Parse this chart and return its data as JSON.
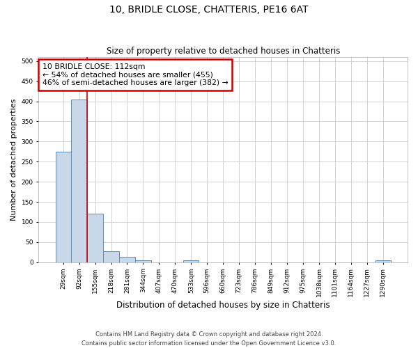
{
  "title1": "10, BRIDLE CLOSE, CHATTERIS, PE16 6AT",
  "title2": "Size of property relative to detached houses in Chatteris",
  "xlabel": "Distribution of detached houses by size in Chatteris",
  "ylabel": "Number of detached properties",
  "footer1": "Contains HM Land Registry data © Crown copyright and database right 2024.",
  "footer2": "Contains public sector information licensed under the Open Government Licence v3.0.",
  "bar_labels": [
    "29sqm",
    "92sqm",
    "155sqm",
    "218sqm",
    "281sqm",
    "344sqm",
    "407sqm",
    "470sqm",
    "533sqm",
    "596sqm",
    "660sqm",
    "723sqm",
    "786sqm",
    "849sqm",
    "912sqm",
    "975sqm",
    "1038sqm",
    "1101sqm",
    "1164sqm",
    "1227sqm",
    "1290sqm"
  ],
  "bar_values": [
    275,
    405,
    120,
    27,
    13,
    5,
    0,
    0,
    5,
    0,
    0,
    0,
    0,
    0,
    0,
    0,
    0,
    0,
    0,
    0,
    5
  ],
  "bar_color": "#c8d8e8",
  "bar_edge_color": "#5b8db8",
  "property_line_x": 1.5,
  "annotation_line1": "10 BRIDLE CLOSE: 112sqm",
  "annotation_line2": "← 54% of detached houses are smaller (455)",
  "annotation_line3": "46% of semi-detached houses are larger (382) →",
  "annotation_box_color": "#ffffff",
  "annotation_box_edge": "#cc0000",
  "red_line_color": "#cc0000",
  "ylim": [
    0,
    510
  ],
  "yticks": [
    0,
    50,
    100,
    150,
    200,
    250,
    300,
    350,
    400,
    450,
    500
  ],
  "grid_color": "#cccccc",
  "fig_width": 6.0,
  "fig_height": 5.0,
  "dpi": 100
}
